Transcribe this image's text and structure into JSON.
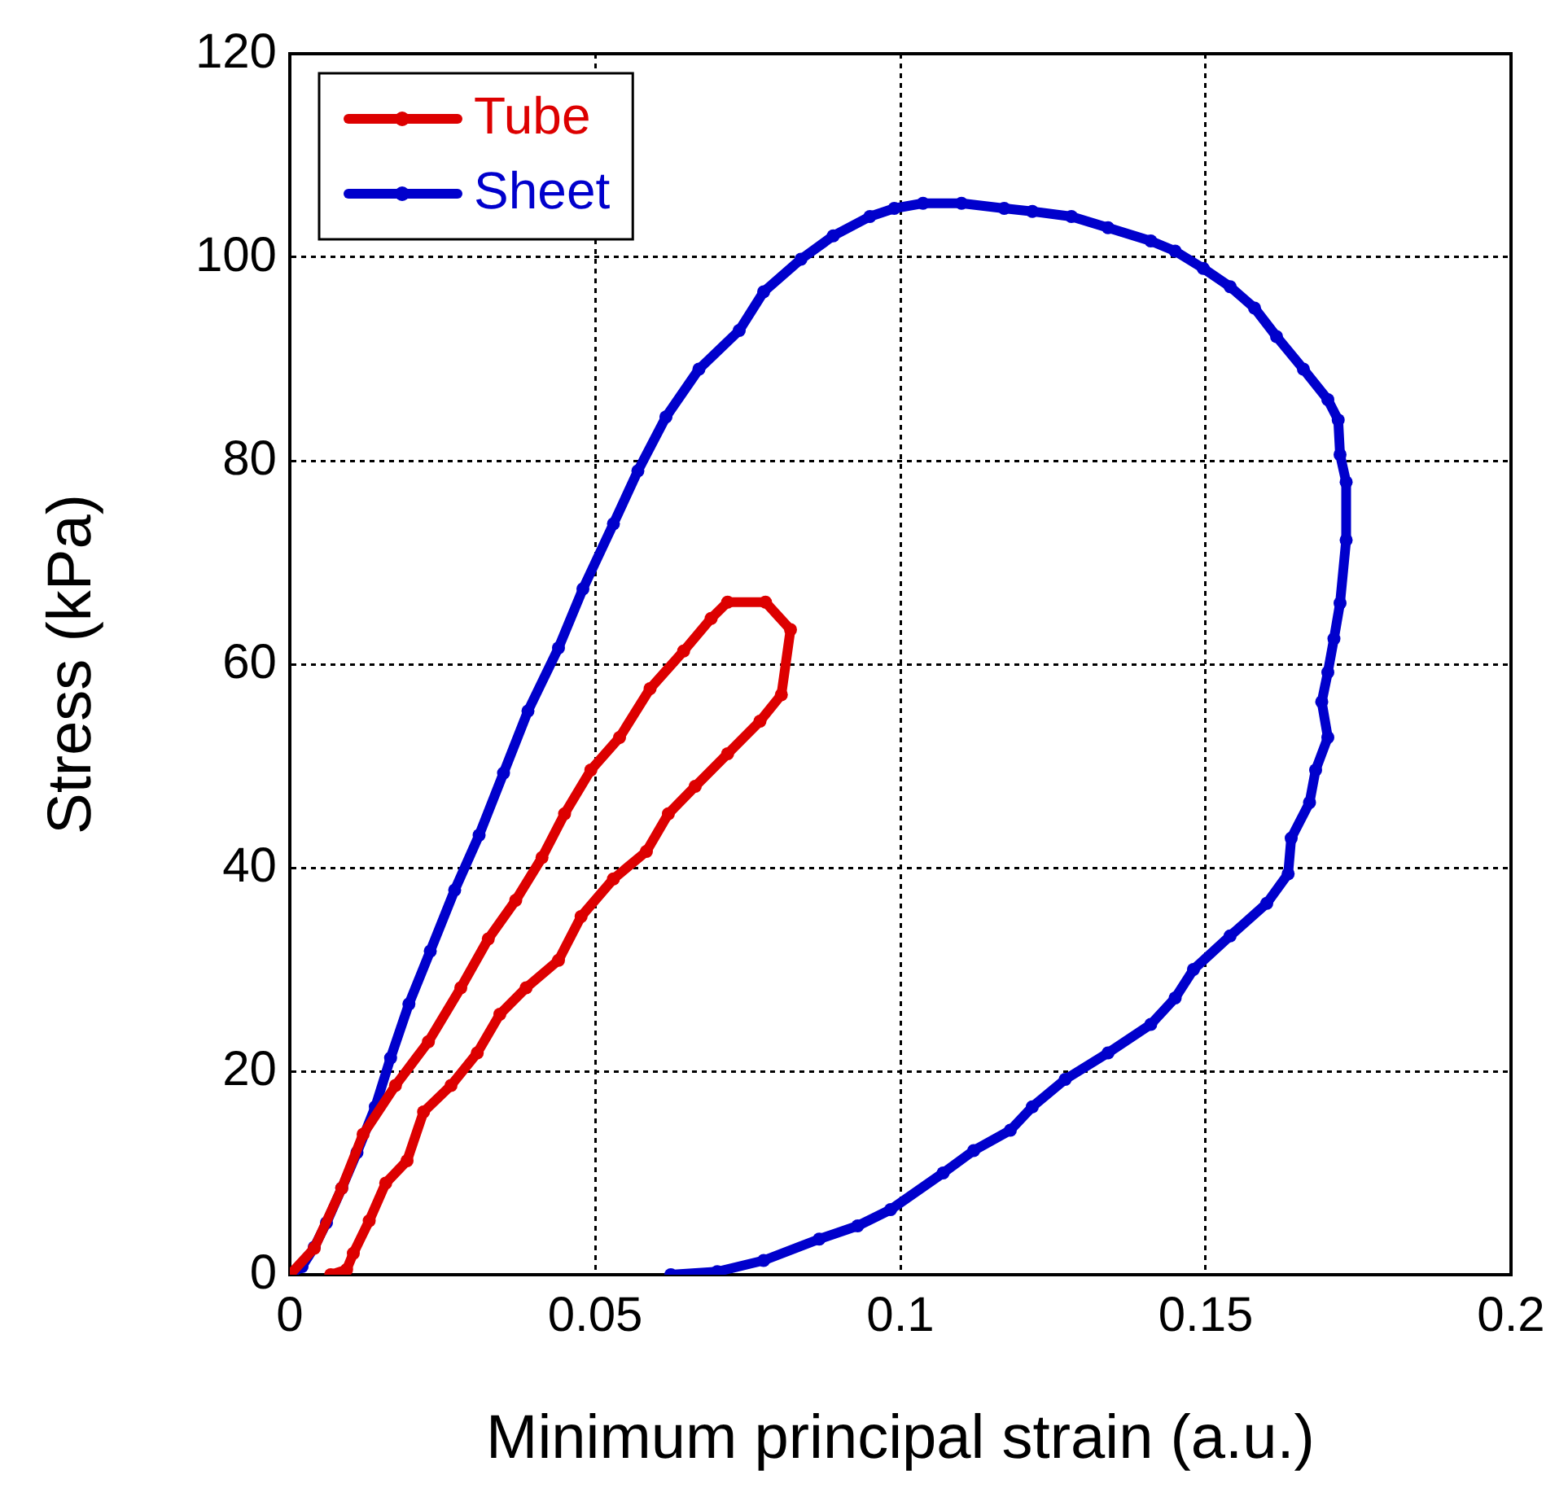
{
  "chart_data": {
    "type": "line",
    "xlabel": "Minimum principal strain (a.u.)",
    "ylabel": "Stress (kPa)",
    "xlim": [
      0,
      0.2
    ],
    "xticks": [
      0,
      0.05,
      0.1,
      0.15,
      0.2
    ],
    "ylim": [
      0,
      120
    ],
    "yticks": [
      0,
      20,
      40,
      60,
      80,
      100,
      120
    ],
    "grid": true,
    "legend": "top left",
    "marker": "circle",
    "line_style": "solid",
    "series": [
      {
        "name": "Tube",
        "color": "#dd0000",
        "x": [
          0,
          0.004,
          0.0085,
          0.012,
          0.0173,
          0.0227,
          0.028,
          0.0325,
          0.037,
          0.0413,
          0.045,
          0.0493,
          0.054,
          0.059,
          0.0645,
          0.069,
          0.0717,
          0.0779,
          0.082,
          0.0805,
          0.077,
          0.0717,
          0.0664,
          0.062,
          0.0584,
          0.053,
          0.0477,
          0.044,
          0.0387,
          0.0344,
          0.0307,
          0.0264,
          0.0219,
          0.0192,
          0.0157,
          0.013,
          0.0104,
          0.0093,
          0.0067
        ],
        "values": [
          0,
          2.6,
          8.5,
          13.8,
          18.6,
          22.9,
          28.2,
          33,
          36.8,
          41,
          45.3,
          49.6,
          52.8,
          57.6,
          61.3,
          64.5,
          66.1,
          66.1,
          63.4,
          57,
          54.4,
          51.2,
          48,
          45.3,
          41.6,
          38.9,
          35.2,
          30.9,
          28.2,
          25.6,
          21.8,
          18.6,
          16,
          11.2,
          9,
          5.3,
          2.1,
          0.5,
          0
        ]
      },
      {
        "name": "Sheet",
        "color": "#0000cc",
        "x": [
          0,
          0.002,
          0.004,
          0.006,
          0.0085,
          0.011,
          0.014,
          0.0165,
          0.0195,
          0.023,
          0.027,
          0.031,
          0.035,
          0.039,
          0.044,
          0.048,
          0.053,
          0.057,
          0.0616,
          0.067,
          0.0736,
          0.0776,
          0.0837,
          0.089,
          0.095,
          0.099,
          0.1037,
          0.11,
          0.117,
          0.1216,
          0.128,
          0.134,
          0.141,
          0.145,
          0.1496,
          0.154,
          0.158,
          0.1616,
          0.166,
          0.17,
          0.1717,
          0.172,
          0.173,
          0.173,
          0.172,
          0.171,
          0.17,
          0.169,
          0.17,
          0.168,
          0.167,
          0.164,
          0.1635,
          0.16,
          0.154,
          0.148,
          0.145,
          0.141,
          0.134,
          0.127,
          0.1216,
          0.118,
          0.112,
          0.107,
          0.0984,
          0.093,
          0.0867,
          0.0776,
          0.07,
          0.0624
        ],
        "values": [
          0,
          0.8,
          2.7,
          5.1,
          8.5,
          12,
          16.5,
          21.3,
          26.6,
          31.8,
          37.8,
          43.2,
          49.3,
          55.4,
          61.6,
          67.4,
          73.8,
          79,
          84.3,
          89,
          92.8,
          96.6,
          99.8,
          102.1,
          104,
          104.8,
          105.3,
          105.3,
          104.8,
          104.5,
          104,
          102.9,
          101.6,
          100.6,
          98.9,
          97.1,
          95,
          92.2,
          89,
          86,
          84,
          80.6,
          77.9,
          72.2,
          66,
          62.5,
          59.2,
          56.3,
          52.8,
          49.6,
          46.4,
          42.9,
          39.4,
          36.5,
          33.3,
          30,
          27.2,
          24.6,
          21.8,
          19.2,
          16.5,
          14.2,
          12.2,
          10,
          6.4,
          4.8,
          3.5,
          1.4,
          0.3,
          0
        ]
      }
    ]
  }
}
